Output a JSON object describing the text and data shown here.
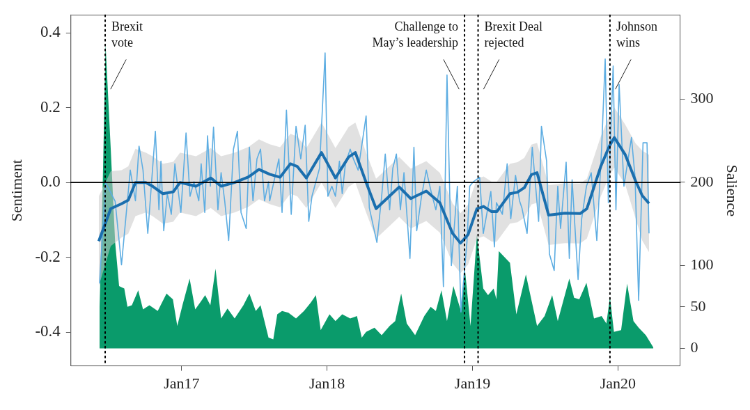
{
  "chart_data": {
    "type": "line",
    "xlabel": null,
    "ylabel": "Sentiment",
    "y2label": "Salience",
    "xlim": [
      "2016-03-29",
      "2020-06-05"
    ],
    "xticks": [
      {
        "value": "2017-01-01",
        "label": "Jan17"
      },
      {
        "value": "2018-01-01",
        "label": "Jan18"
      },
      {
        "value": "2019-01-01",
        "label": "Jan19"
      },
      {
        "value": "2020-01-01",
        "label": "Jan20"
      }
    ],
    "ylim": [
      -0.49,
      0.447
    ],
    "yticks": [
      -0.4,
      -0.2,
      {
        "value": 0,
        "label": "0.0"
      },
      0.2,
      0.4
    ],
    "y2lim": [
      -21,
      401
    ],
    "y2ticks": [
      0,
      50,
      100,
      200,
      300
    ],
    "grid": false,
    "legend": false,
    "marker": "none",
    "ref_lines": [
      {
        "axis": "y",
        "value": 0,
        "color": "#000000",
        "line_style": "solid"
      },
      {
        "axis": "x",
        "value": "2016-06-23",
        "label": "Brexit\nvote",
        "color": "#000000",
        "line_style": "dotted"
      },
      {
        "axis": "x",
        "value": "2018-12-12",
        "label": "Challenge to\nMay’s leadership",
        "color": "#000000",
        "line_style": "dotted"
      },
      {
        "axis": "x",
        "value": "2019-01-15",
        "label": "Brexit Deal\nrejected",
        "color": "#000000",
        "line_style": "dotted"
      },
      {
        "axis": "x",
        "value": "2019-12-12",
        "label": "Johnson\nwins",
        "color": "#000000",
        "line_style": "dotted"
      }
    ],
    "series": [
      {
        "type": "area",
        "axis": "y2",
        "color": "#0a9b6b",
        "x": [
          "2016-06-09",
          "2016-06-17",
          "2016-06-24",
          "2016-07-07",
          "2016-07-18",
          "2016-07-28",
          "2016-08-10",
          "2016-08-18",
          "2016-08-29",
          "2016-09-14",
          "2016-09-26",
          "2016-10-12",
          "2016-11-02",
          "2016-11-24",
          "2016-12-10",
          "2016-12-21",
          "2017-01-03",
          "2017-01-21",
          "2017-02-04",
          "2017-02-19",
          "2017-03-01",
          "2017-03-14",
          "2017-03-27",
          "2017-04-10",
          "2017-04-26",
          "2017-05-14",
          "2017-06-05",
          "2017-06-20",
          "2017-07-06",
          "2017-07-18",
          "2017-08-07",
          "2017-08-19",
          "2017-08-29",
          "2017-09-10",
          "2017-09-26",
          "2017-10-15",
          "2017-11-04",
          "2017-11-21",
          "2017-12-04",
          "2017-12-16",
          "2018-01-07",
          "2018-01-22",
          "2018-02-08",
          "2018-02-28",
          "2018-03-17",
          "2018-03-29",
          "2018-04-09",
          "2018-04-30",
          "2018-05-18",
          "2018-06-07",
          "2018-06-21",
          "2018-07-06",
          "2018-07-20",
          "2018-08-10",
          "2018-09-02",
          "2018-09-18",
          "2018-10-01",
          "2018-10-15",
          "2018-10-29",
          "2018-11-14",
          "2018-12-03",
          "2018-12-13",
          "2018-12-27",
          "2019-01-12",
          "2019-01-28",
          "2019-02-09",
          "2019-02-23",
          "2019-03-02",
          "2019-03-08",
          "2019-03-20",
          "2019-04-05",
          "2019-04-21",
          "2019-05-15",
          "2019-06-12",
          "2019-07-01",
          "2019-07-20",
          "2019-08-03",
          "2019-09-01",
          "2019-09-13",
          "2019-09-26",
          "2019-10-14",
          "2019-11-02",
          "2019-11-21",
          "2019-12-03",
          "2019-12-12",
          "2019-12-22",
          "2020-01-09",
          "2020-01-24",
          "2020-02-09",
          "2020-02-22",
          "2020-03-11",
          "2020-03-30"
        ],
        "values": [
          50,
          200,
          366,
          240,
          128,
          75,
          72,
          50,
          52,
          70,
          47,
          52,
          45,
          66,
          59,
          27,
          52,
          84,
          47,
          57,
          64,
          52,
          96,
          36,
          48,
          36,
          52,
          66,
          45,
          52,
          13,
          11,
          41,
          45,
          43,
          36,
          45,
          55,
          64,
          22,
          41,
          33,
          41,
          36,
          39,
          13,
          20,
          25,
          16,
          27,
          33,
          66,
          30,
          16,
          39,
          50,
          45,
          70,
          33,
          75,
          45,
          95,
          27,
          137,
          72,
          64,
          72,
          59,
          117,
          111,
          103,
          41,
          89,
          27,
          39,
          64,
          33,
          84,
          61,
          59,
          79,
          36,
          39,
          30,
          62,
          20,
          22,
          78,
          33,
          25,
          16,
          1
        ]
      },
      {
        "color": "#5dade2",
        "x": [
          "2016-06-09",
          "2016-06-24",
          "2016-07-18",
          "2016-08-03",
          "2016-08-25",
          "2016-09-07",
          "2016-09-16",
          "2016-09-26",
          "2016-10-08",
          "2016-10-27",
          "2016-11-05",
          "2016-11-10",
          "2016-11-17",
          "2016-11-26",
          "2016-12-06",
          "2016-12-15",
          "2016-12-30",
          "2017-01-12",
          "2017-01-22",
          "2017-02-01",
          "2017-02-13",
          "2017-02-19",
          "2017-02-28",
          "2017-03-07",
          "2017-03-14",
          "2017-03-22",
          "2017-04-02",
          "2017-04-10",
          "2017-04-19",
          "2017-04-29",
          "2017-05-11",
          "2017-05-21",
          "2017-05-30",
          "2017-06-12",
          "2017-06-20",
          "2017-06-29",
          "2017-07-09",
          "2017-07-18",
          "2017-07-28",
          "2017-08-07",
          "2017-08-10",
          "2017-09-02",
          "2017-09-10",
          "2017-09-21",
          "2017-10-03",
          "2017-10-15",
          "2017-10-27",
          "2017-11-07",
          "2017-11-16",
          "2017-11-24",
          "2017-12-13",
          "2017-12-27",
          "2018-01-03",
          "2018-01-13",
          "2018-01-22",
          "2018-02-01",
          "2018-02-08",
          "2018-02-16",
          "2018-02-28",
          "2018-03-08",
          "2018-03-20",
          "2018-04-09",
          "2018-04-17",
          "2018-05-06",
          "2018-05-18",
          "2018-05-27",
          "2018-06-07",
          "2018-06-15",
          "2018-06-24",
          "2018-07-04",
          "2018-07-13",
          "2018-07-28",
          "2018-08-07",
          "2018-08-14",
          "2018-08-26",
          "2018-09-07",
          "2018-09-19",
          "2018-10-01",
          "2018-10-11",
          "2018-10-20",
          "2018-10-29",
          "2018-11-09",
          "2018-11-24",
          "2018-12-03",
          "2018-12-18",
          "2018-12-25",
          "2019-01-03",
          "2019-01-19",
          "2019-01-28",
          "2019-02-16",
          "2019-02-25",
          "2019-03-02",
          "2019-03-17",
          "2019-03-29",
          "2019-04-07",
          "2019-04-19",
          "2019-04-29",
          "2019-05-05",
          "2019-05-18",
          "2019-05-31",
          "2019-06-16",
          "2019-06-23",
          "2019-07-06",
          "2019-07-13",
          "2019-07-25",
          "2019-08-03",
          "2019-08-10",
          "2019-08-24",
          "2019-09-01",
          "2019-09-08",
          "2019-09-23",
          "2019-10-02",
          "2019-10-14",
          "2019-10-26",
          "2019-11-09",
          "2019-11-21",
          "2019-11-30",
          "2019-12-08",
          "2019-12-20",
          "2019-12-27",
          "2020-01-04",
          "2020-01-16",
          "2020-02-04",
          "2020-02-13",
          "2020-02-22",
          "2020-03-04",
          "2020-03-14",
          "2020-03-19"
        ],
        "values": [
          -0.27,
          0.0,
          -0.05,
          -0.22,
          0.033,
          -0.049,
          0.097,
          0.033,
          -0.136,
          0.137,
          -0.073,
          0.057,
          -0.129,
          -0.03,
          -0.085,
          0.05,
          -0.08,
          0.132,
          -0.037,
          0.002,
          -0.049,
          0.05,
          -0.08,
          0.125,
          -0.01,
          0.148,
          -0.073,
          0.026,
          -0.049,
          -0.155,
          0.089,
          0.137,
          -0.08,
          -0.123,
          0.094,
          -0.049,
          0.063,
          0.089,
          -0.049,
          0.002,
          -0.049,
          0.063,
          -0.08,
          0.193,
          -0.085,
          0.15,
          0.063,
          0.153,
          -0.104,
          -0.037,
          0.038,
          0.346,
          -0.037,
          -0.01,
          -0.037,
          0.057,
          -0.03,
          0.05,
          0.089,
          0.063,
          0.033,
          0.178,
          -0.068,
          -0.16,
          -0.037,
          0.076,
          -0.073,
          0.038,
          0.076,
          -0.073,
          0.026,
          -0.203,
          0.094,
          -0.129,
          -0.037,
          0.033,
          -0.024,
          -0.073,
          -0.01,
          -0.278,
          0.287,
          -0.222,
          -0.01,
          -0.346,
          -0.16,
          -0.01,
          0.002,
          0.014,
          -0.136,
          -0.024,
          -0.172,
          -0.054,
          -0.085,
          0.05,
          -0.097,
          0.019,
          -0.049,
          -0.068,
          -0.136,
          0.094,
          -0.104,
          0.15,
          0.057,
          -0.191,
          -0.235,
          -0.01,
          -0.123,
          0.054,
          -0.203,
          0.007,
          -0.259,
          -0.097,
          -0.01,
          0.026,
          -0.155,
          0.089,
          0.33,
          -0.054,
          0.311,
          -0.073,
          0.262,
          -0.01,
          0.12,
          0.014,
          -0.315,
          0.106,
          0.106,
          -0.136
        ]
      },
      {
        "color": "#1b6fae",
        "x": [
          "2016-06-07",
          "2016-07-07",
          "2016-08-03",
          "2016-08-20",
          "2016-09-07",
          "2016-10-03",
          "2016-10-20",
          "2016-11-15",
          "2016-12-11",
          "2016-12-28",
          "2017-02-06",
          "2017-03-15",
          "2017-04-10",
          "2017-05-14",
          "2017-06-18",
          "2017-07-14",
          "2017-08-10",
          "2017-09-05",
          "2017-10-01",
          "2017-10-18",
          "2017-11-10",
          "2017-12-18",
          "2018-01-22",
          "2018-02-24",
          "2018-03-13",
          "2018-04-09",
          "2018-05-04",
          "2018-06-08",
          "2018-07-01",
          "2018-07-30",
          "2018-09-07",
          "2018-10-11",
          "2018-11-12",
          "2018-12-02",
          "2018-12-21",
          "2019-01-12",
          "2019-01-29",
          "2019-02-18",
          "2019-03-03",
          "2019-04-05",
          "2019-04-24",
          "2019-05-11",
          "2019-05-29",
          "2019-06-12",
          "2019-07-11",
          "2019-08-21",
          "2019-09-28",
          "2019-10-15",
          "2019-11-19",
          "2019-12-10",
          "2019-12-23",
          "2020-01-19",
          "2020-02-14",
          "2020-03-02",
          "2020-03-19"
        ],
        "values": [
          -0.157,
          -0.07,
          -0.057,
          -0.047,
          0,
          0,
          -0.01,
          -0.03,
          -0.025,
          0,
          -0.01,
          0.012,
          -0.01,
          0,
          0.015,
          0.035,
          0.022,
          0.014,
          0.05,
          0.043,
          0.012,
          0.08,
          0.012,
          0.068,
          0.08,
          0,
          -0.07,
          -0.035,
          -0.012,
          -0.043,
          -0.023,
          -0.054,
          -0.136,
          -0.162,
          -0.139,
          -0.07,
          -0.064,
          -0.078,
          -0.078,
          -0.03,
          -0.026,
          -0.014,
          0.021,
          0.026,
          -0.087,
          -0.082,
          -0.083,
          -0.07,
          0.043,
          0.096,
          0.12,
          0.075,
          0.005,
          -0.035,
          -0.056
        ],
        "lower": [
          -0.277,
          -0.17,
          -0.147,
          -0.137,
          -0.09,
          -0.08,
          -0.09,
          -0.11,
          -0.105,
          -0.08,
          -0.09,
          -0.068,
          -0.09,
          -0.08,
          -0.065,
          -0.045,
          -0.058,
          -0.066,
          -0.03,
          -0.037,
          -0.068,
          0,
          -0.068,
          -0.012,
          0,
          -0.08,
          -0.15,
          -0.115,
          -0.092,
          -0.123,
          -0.103,
          -0.134,
          -0.216,
          -0.242,
          -0.219,
          -0.15,
          -0.144,
          -0.158,
          -0.158,
          -0.11,
          -0.106,
          -0.094,
          -0.059,
          -0.054,
          -0.167,
          -0.162,
          -0.163,
          -0.15,
          -0.037,
          0.016,
          0.04,
          -0.005,
          -0.095,
          -0.155,
          -0.186
        ],
        "upper": [
          -0.037,
          0.03,
          0.033,
          0.043,
          0.09,
          0.08,
          0.07,
          0.05,
          0.055,
          0.08,
          0.07,
          0.092,
          0.07,
          0.08,
          0.095,
          0.115,
          0.102,
          0.094,
          0.13,
          0.123,
          0.092,
          0.16,
          0.092,
          0.148,
          0.16,
          0.08,
          0.01,
          0.045,
          0.068,
          0.037,
          0.057,
          0.026,
          -0.056,
          -0.082,
          -0.059,
          0.01,
          0.016,
          0.002,
          0.002,
          0.05,
          0.054,
          0.066,
          0.101,
          0.106,
          -0.007,
          -0.002,
          -0.003,
          0.01,
          0.123,
          0.176,
          0.2,
          0.155,
          0.105,
          0.085,
          0.074
        ]
      }
    ]
  }
}
